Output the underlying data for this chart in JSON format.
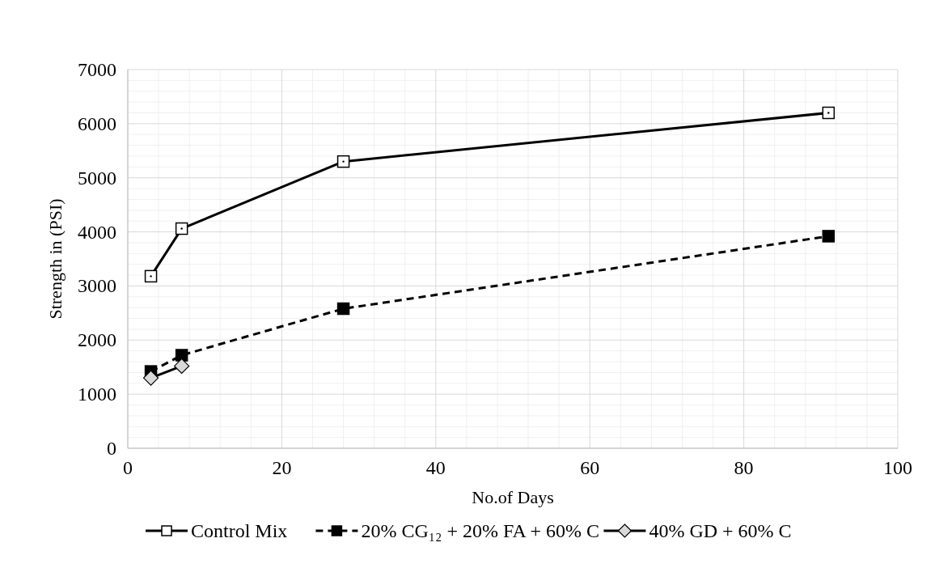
{
  "chart_data": {
    "type": "line",
    "xlabel": "No.of Days",
    "ylabel": "Strength in (PSI)",
    "xlim": [
      0,
      100
    ],
    "xticks": [
      0,
      20,
      40,
      60,
      80,
      100
    ],
    "ylim": [
      0,
      7000
    ],
    "yticks": [
      0,
      1000,
      2000,
      3000,
      4000,
      5000,
      6000,
      7000
    ],
    "grid": true,
    "legend": "bottom",
    "series": [
      {
        "name": "Control Mix",
        "color": "#000000",
        "x": [
          3,
          7,
          28,
          91
        ],
        "values": [
          3180,
          4060,
          5300,
          6200
        ],
        "marker": "square",
        "line_style": "solid"
      },
      {
        "name": "20% CG₁₂ + 20% FA + 60% C",
        "color": "#000000",
        "x": [
          3,
          7,
          28,
          91
        ],
        "values": [
          1420,
          1720,
          2580,
          3920
        ],
        "marker": "square",
        "line_style": "dashed"
      },
      {
        "name": "40% GD + 60% C",
        "color": "#000000",
        "x": [
          3,
          7
        ],
        "values": [
          1300,
          1520
        ],
        "marker": "diamond",
        "line_style": "solid"
      }
    ]
  }
}
